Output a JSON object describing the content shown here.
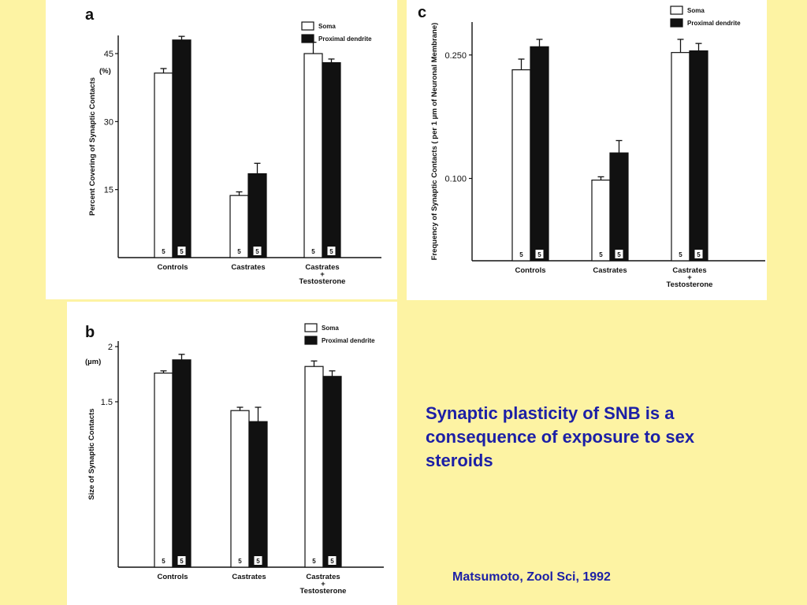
{
  "caption": "Synaptic plasticity of SNB is a consequence of exposure to sex steroids",
  "citation": "Matsumoto, Zool Sci, 1992",
  "colors": {
    "background": "#fdf3a3",
    "caption": "#1c1fa6",
    "soma": "#ffffff",
    "dendrite": "#111111"
  },
  "chart_data": [
    {
      "id": "a",
      "panel_label": "a",
      "type": "bar",
      "ylabel": "Percent Covering of Synaptic Contacts",
      "unit": "(%)",
      "yticks": [
        15,
        30,
        45
      ],
      "ylim": [
        0,
        49
      ],
      "categories": [
        "Controls",
        "Castrates",
        "Castrates + Testosterone"
      ],
      "n_labels": [
        [
          "5",
          "5"
        ],
        [
          "5",
          "5"
        ],
        [
          "5",
          "5"
        ]
      ],
      "series": [
        {
          "name": "Soma",
          "values": [
            40.7,
            13.7,
            45.0
          ],
          "errors": [
            1.0,
            0.8,
            2.5
          ]
        },
        {
          "name": "Proximal dendrite",
          "values": [
            48.0,
            18.5,
            43.0
          ],
          "errors": [
            0.8,
            2.3,
            0.8
          ]
        }
      ],
      "legend": "top-right"
    },
    {
      "id": "b",
      "panel_label": "b",
      "type": "bar",
      "ylabel": "Size of Synaptic Contacts",
      "unit": "(µm)",
      "yticks": [
        1.5,
        2.0
      ],
      "ylim": [
        0,
        2.05
      ],
      "categories": [
        "Controls",
        "Castrates",
        "Castrates + Testosterone"
      ],
      "n_labels": [
        [
          "5",
          "5"
        ],
        [
          "5",
          "5"
        ],
        [
          "5",
          "5"
        ]
      ],
      "series": [
        {
          "name": "Soma",
          "values": [
            1.76,
            1.42,
            1.82
          ],
          "errors": [
            0.02,
            0.03,
            0.05
          ]
        },
        {
          "name": "Proximal dendrite",
          "values": [
            1.88,
            1.32,
            1.73
          ],
          "errors": [
            0.05,
            0.13,
            0.05
          ]
        }
      ],
      "legend": "top-right"
    },
    {
      "id": "c",
      "panel_label": "c",
      "type": "bar",
      "ylabel": "Frequency of Synaptic Contacts ( per 1 µm of Neuronal Membrane)",
      "yticks": [
        0.1,
        0.25
      ],
      "ytick_labels": [
        "0.100",
        "0.250"
      ],
      "ylim": [
        0,
        0.29
      ],
      "categories": [
        "Controls",
        "Castrates",
        "Castrates + Testosterone"
      ],
      "n_labels": [
        [
          "5",
          "5"
        ],
        [
          "5",
          "5"
        ],
        [
          "5",
          "5"
        ]
      ],
      "series": [
        {
          "name": "Soma",
          "values": [
            0.232,
            0.098,
            0.253
          ],
          "errors": [
            0.013,
            0.004,
            0.016
          ]
        },
        {
          "name": "Proximal dendrite",
          "values": [
            0.26,
            0.131,
            0.255
          ],
          "errors": [
            0.009,
            0.015,
            0.009
          ]
        }
      ],
      "legend": "top-right"
    }
  ]
}
